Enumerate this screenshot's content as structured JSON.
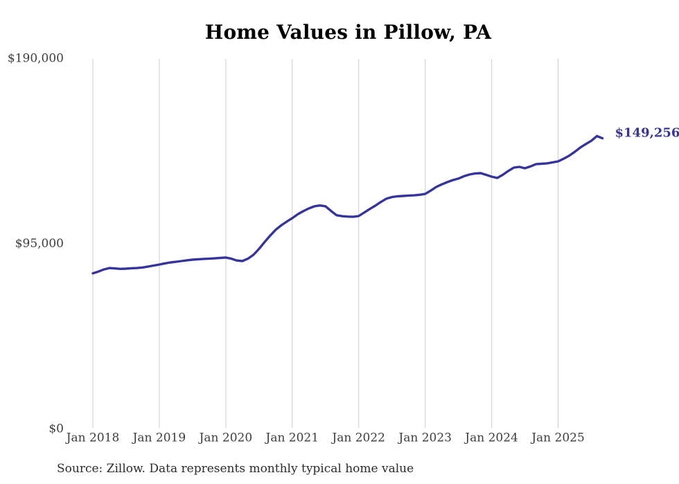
{
  "page": {
    "title": "Home Values in Pillow, PA",
    "source_note": "Source: Zillow. Data represents monthly typical home value"
  },
  "colors": {
    "line": "#34349c",
    "grid": "#cccccc",
    "axis_text": "#3d3d3d",
    "title_text": "#000000",
    "background": "#ffffff"
  },
  "chart_data": {
    "type": "line",
    "title": "Home Values in Pillow, PA",
    "xlabel": "",
    "ylabel": "",
    "grid": "vertical-only",
    "legend": "none",
    "ylim": [
      0,
      190000
    ],
    "x_tick_labels": [
      "Jan 2018",
      "Jan 2019",
      "Jan 2020",
      "Jan 2021",
      "Jan 2022",
      "Jan 2023",
      "Jan 2024",
      "Jan 2025"
    ],
    "y_ticks": [
      {
        "label": "$0",
        "value": 0
      },
      {
        "label": "$95,000",
        "value": 95000
      },
      {
        "label": "$190,000",
        "value": 190000
      }
    ],
    "latest_value_label": "$149,256",
    "latest_value": 149256,
    "source": "Source: Zillow. Data represents monthly typical home value",
    "series": [
      {
        "name": "Typical home value",
        "start_month": "Jan 2018",
        "end_month": "Sep 2025",
        "frequency": "monthly",
        "values": [
          80000,
          80900,
          82000,
          82700,
          82500,
          82300,
          82400,
          82600,
          82700,
          83000,
          83500,
          84000,
          84500,
          85100,
          85600,
          85900,
          86300,
          86700,
          87000,
          87200,
          87400,
          87500,
          87700,
          87900,
          88100,
          87500,
          86600,
          86300,
          87500,
          89500,
          92500,
          96000,
          99300,
          102300,
          104600,
          106500,
          108300,
          110300,
          111900,
          113300,
          114400,
          114800,
          114400,
          112000,
          109800,
          109300,
          109100,
          109000,
          109400,
          111200,
          113000,
          114700,
          116600,
          118300,
          119100,
          119500,
          119700,
          119900,
          120000,
          120300,
          120700,
          122400,
          124300,
          125600,
          126800,
          127800,
          128600,
          129800,
          130700,
          131200,
          131400,
          130500,
          129600,
          128900,
          130500,
          132500,
          134200,
          134600,
          133900,
          134800,
          136000,
          136200,
          136400,
          136900,
          137400,
          138800,
          140300,
          142300,
          144500,
          146300,
          148000,
          150400,
          149256
        ]
      }
    ]
  }
}
